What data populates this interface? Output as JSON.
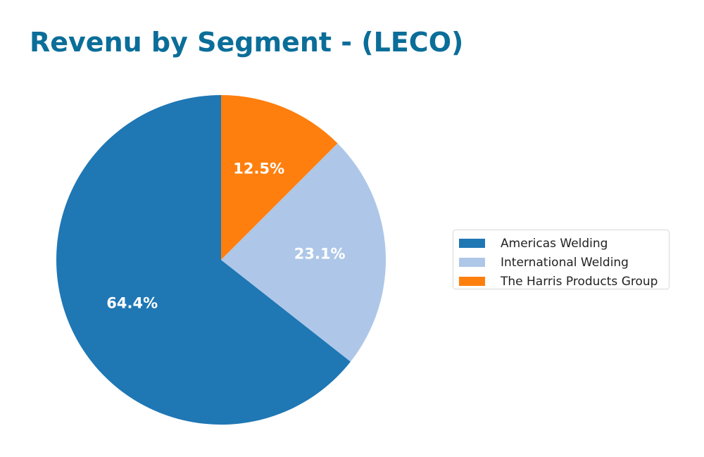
{
  "chart_data": {
    "type": "pie",
    "title": "Revenu by Segment - (LECO)",
    "labels": [
      "Americas Welding",
      "International Welding",
      "The Harris Products Group"
    ],
    "values": [
      64.4,
      23.1,
      12.5
    ],
    "value_labels": [
      "64.4%",
      "23.1%",
      "12.5%"
    ],
    "colors": [
      "#1f77b4",
      "#aec7e8",
      "#ff7f0e"
    ],
    "start_angle": 90,
    "counterclockwise": true,
    "legend_position": "right"
  }
}
